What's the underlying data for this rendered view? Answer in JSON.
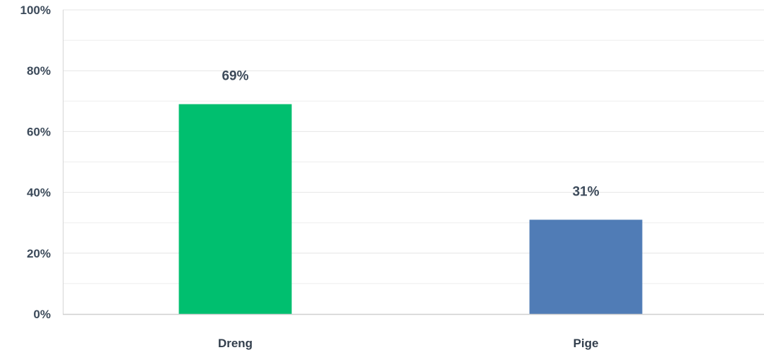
{
  "chart_data": {
    "type": "bar",
    "categories": [
      "Dreng",
      "Pige"
    ],
    "values": [
      69,
      31
    ],
    "data_labels": [
      "69%",
      "31%"
    ],
    "colors": [
      "#00bf6f",
      "#507cb6"
    ],
    "yticks": [
      "0%",
      "20%",
      "40%",
      "60%",
      "80%",
      "100%"
    ],
    "ylim": [
      0,
      100
    ],
    "minor_gridlines": true,
    "title": "",
    "xlabel": "",
    "ylabel": ""
  }
}
